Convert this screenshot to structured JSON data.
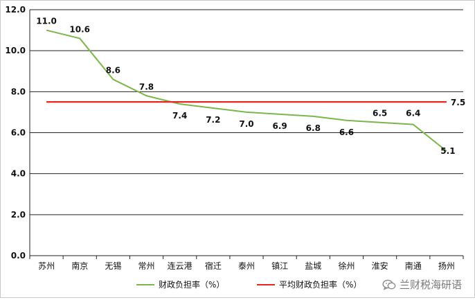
{
  "chart_data": {
    "type": "line",
    "categories": [
      "苏州",
      "南京",
      "无锡",
      "常州",
      "连云港",
      "宿迁",
      "泰州",
      "镇江",
      "盐城",
      "徐州",
      "淮安",
      "南通",
      "扬州"
    ],
    "series": [
      {
        "name": "财政负担率（%）",
        "values": [
          11.0,
          10.6,
          8.6,
          7.8,
          7.4,
          7.2,
          7.0,
          6.9,
          6.8,
          6.6,
          6.5,
          6.4,
          5.1
        ],
        "color": "#7ab648"
      },
      {
        "name": "平均财政负担率（%）",
        "values": [
          7.5,
          7.5,
          7.5,
          7.5,
          7.5,
          7.5,
          7.5,
          7.5,
          7.5,
          7.5,
          7.5,
          7.5,
          7.5
        ],
        "color": "#e8251f"
      }
    ],
    "data_labels": [
      "11.0",
      "10.6",
      "8.6",
      "7.8",
      "7.4",
      "7.2",
      "7.0",
      "6.9",
      "6.8",
      "6.6",
      "6.5",
      "6.4",
      "5.1"
    ],
    "average_label": "7.5",
    "yticks": [
      "0.0",
      "2.0",
      "4.0",
      "6.0",
      "8.0",
      "10.0",
      "12.0"
    ],
    "ylim": [
      0,
      12
    ],
    "grid": true,
    "legend_position": "bottom"
  },
  "watermark": {
    "text": "兰财税海研语",
    "icon": "wechat-icon"
  }
}
